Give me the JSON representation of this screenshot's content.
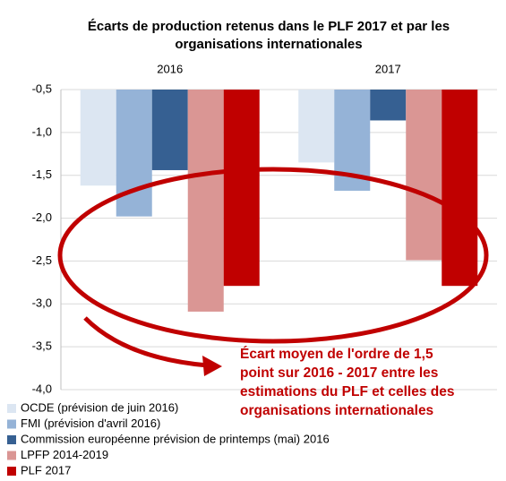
{
  "chart_data": {
    "type": "bar",
    "title": [
      "Écarts de production retenus dans le PLF 2017 et par les",
      "organisations internationales"
    ],
    "categories": [
      "2016",
      "2017"
    ],
    "series": [
      {
        "name": "OCDE (prévision de juin 2016)",
        "color": "#dce6f2",
        "values": [
          -1.62,
          -1.35
        ]
      },
      {
        "name": "FMI (prévision d'avril 2016)",
        "color": "#95b3d7",
        "values": [
          -1.98,
          -1.68
        ]
      },
      {
        "name": "Commission européenne prévision de printemps (mai) 2016",
        "color": "#366092",
        "values": [
          -1.44,
          -0.86
        ]
      },
      {
        "name": "LPFP 2014-2019",
        "color": "#da9694",
        "values": [
          -3.09,
          -2.49
        ]
      },
      {
        "name": "PLF 2017",
        "color": "#c00000",
        "values": [
          -2.79,
          -2.79
        ]
      }
    ],
    "ylim": [
      -4.0,
      -0.5
    ],
    "yticks": [
      {
        "value": -4.0,
        "label": "-4,0"
      },
      {
        "value": -3.5,
        "label": "-3,5"
      },
      {
        "value": -3.0,
        "label": "-3,0"
      },
      {
        "value": -2.5,
        "label": "-2,5"
      },
      {
        "value": -2.0,
        "label": "-2,0"
      },
      {
        "value": -1.5,
        "label": "-1,5"
      },
      {
        "value": -1.0,
        "label": "-1,0"
      },
      {
        "value": -0.5,
        "label": "-0,5"
      }
    ],
    "grid": true,
    "annotation": [
      "Écart moyen de l'ordre de 1,5",
      "point sur 2016 - 2017 entre les",
      "estimations du PLF et celles des",
      "organisations internationales"
    ]
  }
}
